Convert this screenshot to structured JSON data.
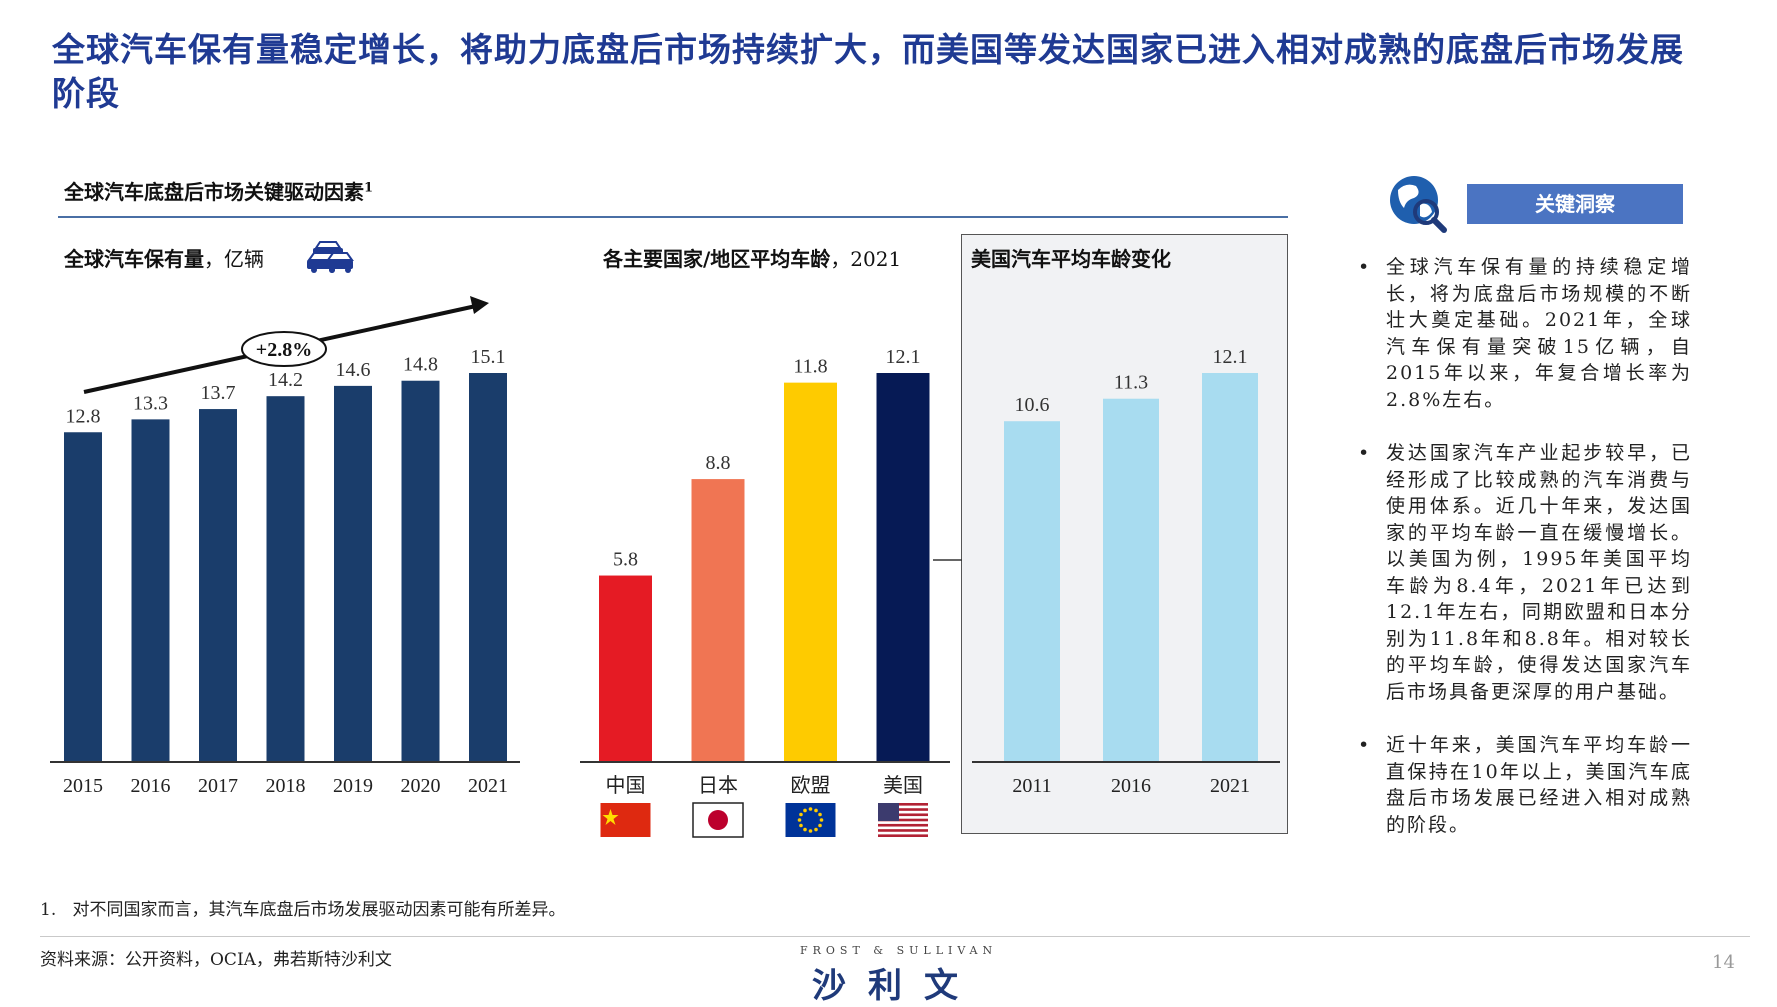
{
  "headline": "全球汽车保有量稳定增长，将助力底盘后市场持续扩大，而美国等发达国家已进入相对成熟的底盘后市场发展阶段",
  "section_title": "全球汽车底盘后市场关键驱动因素",
  "section_sup": "1",
  "chart1_title_bold": "全球汽车保有量",
  "chart1_title_unit": "，亿辆",
  "chart1_icon": "cars-icon",
  "chart2_title_bold": "各主要国家/地区平均车龄",
  "chart2_title_year": "，2021",
  "chart3_title": "美国汽车平均车龄变化",
  "insight_title": "关键洞察",
  "insight_icon": "globe-search-icon",
  "bullet_glyph": "•",
  "bullets": [
    "全球汽车保有量的持续稳定增长，将为底盘后市场规模的不断壮大奠定基础。2021年，全球汽车保有量突破15亿辆，自2015年以来，年复合增长率为2.8%左右。",
    "发达国家汽车产业起步较早，已经形成了比较成熟的汽车消费与使用体系。近几十年来，发达国家的平均车龄一直在缓慢增长。以美国为例，1995年美国平均车龄为8.4年，2021年已达到12.1年左右，同期欧盟和日本分别为11.8年和8.8年。相对较长的平均车龄，使得发达国家汽车后市场具备更深厚的用户基础。",
    "近十年来，美国汽车平均车龄一直保持在10年以上，美国汽车底盘后市场发展已经进入相对成熟的阶段。"
  ],
  "footnote_num": "1.",
  "footnote": "对不同国家而言，其汽车底盘后市场发展驱动因素可能有所差异。",
  "source": "资料来源：公开资料，OCIA，弗若斯特沙利文",
  "brand_top": "FROST & SULLIVAN",
  "brand_main": "沙利文",
  "page_number": "14",
  "chart_data": [
    {
      "type": "bar",
      "title": "全球汽车保有量",
      "ylabel": "亿辆",
      "categories": [
        "2015",
        "2016",
        "2017",
        "2018",
        "2019",
        "2020",
        "2021"
      ],
      "values": [
        12.8,
        13.3,
        13.7,
        14.2,
        14.6,
        14.8,
        15.1
      ],
      "annotation": "+2.8%",
      "ylim": [
        0,
        16.5
      ],
      "color": "#1a3d6b"
    },
    {
      "type": "bar",
      "title": "各主要国家/地区平均车龄",
      "year": "2021",
      "categories": [
        "中国",
        "日本",
        "欧盟",
        "美国"
      ],
      "values": [
        5.8,
        8.8,
        11.8,
        12.1
      ],
      "flags": [
        "china-flag-icon",
        "japan-flag-icon",
        "eu-flag-icon",
        "usa-flag-icon"
      ],
      "colors": [
        "#e51b24",
        "#f07553",
        "#fecb00",
        "#061a55"
      ],
      "ylim": [
        0,
        13.3
      ]
    },
    {
      "type": "bar",
      "title": "美国汽车平均车龄变化",
      "categories": [
        "2011",
        "2016",
        "2021"
      ],
      "values": [
        10.6,
        11.3,
        12.1
      ],
      "ylim": [
        0,
        13.3
      ],
      "color": "#a8dcf0"
    }
  ]
}
